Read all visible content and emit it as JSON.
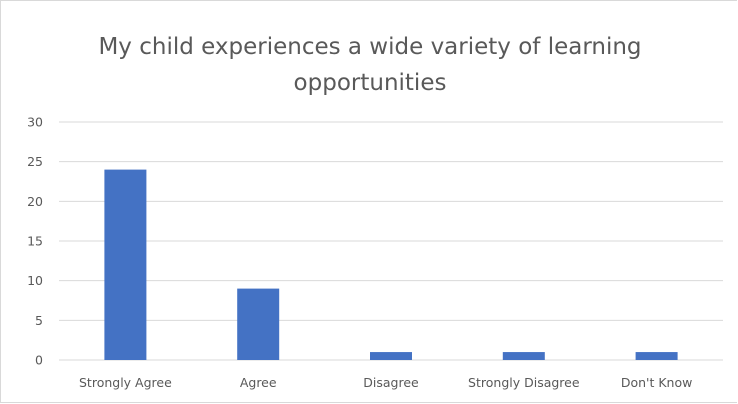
{
  "chart_data": {
    "type": "bar",
    "title": "My child experiences a wide variety of learning\nopportunities",
    "categories": [
      "Strongly Agree",
      "Agree",
      "Disagree",
      "Strongly Disagree",
      "Don't Know"
    ],
    "values": [
      24,
      9,
      1,
      1,
      1
    ],
    "ylim": [
      0,
      30
    ],
    "yticks": [
      0,
      5,
      10,
      15,
      20,
      25,
      30
    ],
    "grid": true,
    "legend": "none",
    "xlabel": "",
    "ylabel": "",
    "colors": {
      "bar": "#4472c4",
      "grid": "#d9d9d9",
      "text": "#595959"
    }
  }
}
